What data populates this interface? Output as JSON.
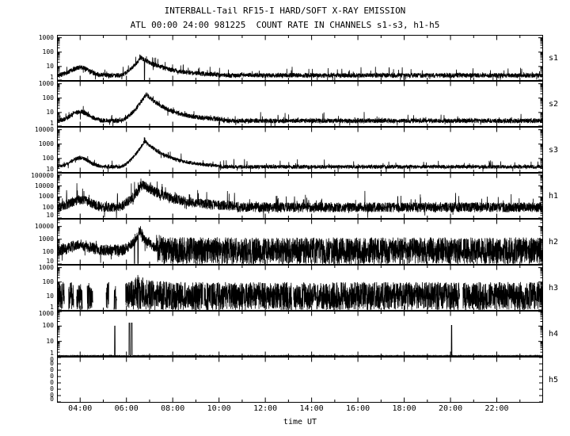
{
  "chart_data": {
    "type": "line",
    "title": "INTERBALL-Tail RF15-I HARD/SOFT X-RAY EMISSION",
    "subtitle": "ATL 00:00 24:00 981225  COUNT RATE IN CHANNELS s1-s3, h1-h5",
    "xlabel": "time UT",
    "date_yymmdd": "981225",
    "line_color": "#000000",
    "background": "#ffffff",
    "grid": false,
    "legend": "none",
    "x_range_hours": [
      3,
      24
    ],
    "sample_step_hours": 0.006,
    "x_major_tick_hours": [
      4,
      6,
      8,
      10,
      12,
      14,
      16,
      18,
      20,
      22
    ],
    "x_tick_labels": [
      "04:00",
      "06:00",
      "08:00",
      "10:00",
      "12:00",
      "14:00",
      "16:00",
      "18:00",
      "20:00",
      "22:00"
    ],
    "panels": [
      {
        "label": "s1",
        "scale": "log",
        "ylog_range": [
          0,
          3.2
        ],
        "yticks": [
          1000,
          100,
          10,
          1
        ],
        "baseline_log": 0.38,
        "noise_log": 0.16,
        "bump": {
          "center": 4.0,
          "sigma": 0.38,
          "amp_log": 0.55
        },
        "flare": {
          "start": 5.7,
          "peak": 6.62,
          "end": 10.0,
          "amp_log": 1.25
        },
        "spikes_up": {
          "prob": 0.03,
          "amp_log": 0.55
        },
        "spikes_down": {
          "prob": 0.008,
          "amp_log": 0.5
        },
        "events": [
          {
            "time": 6.78,
            "log_value": 0.05,
            "width": 0.008
          }
        ],
        "features": "quiet ~2-3 c/s; small bump ~04:00 (~8 c/s); flare peak ~40 c/s at 06:40 with narrow dropout; decay to quiet by ~09:00"
      },
      {
        "label": "s2",
        "scale": "log",
        "ylog_range": [
          0,
          3.2
        ],
        "yticks": [
          1000,
          100,
          10,
          1
        ],
        "baseline_log": 0.42,
        "noise_log": 0.16,
        "bump": {
          "center": 4.0,
          "sigma": 0.38,
          "amp_log": 0.62
        },
        "flare": {
          "start": 5.7,
          "peak": 6.85,
          "end": 10.2,
          "amp_log": 1.85
        },
        "spikes_up": {
          "prob": 0.03,
          "amp_log": 0.5
        },
        "spikes_down": {
          "prob": 0.008,
          "amp_log": 0.55
        },
        "events": [],
        "features": "quiet ~3 c/s; bump ~04:00 (~12 c/s); flare peak ~180 c/s at 06:50; decay by ~09:00"
      },
      {
        "label": "s3",
        "scale": "log",
        "ylog_range": [
          1,
          4.2
        ],
        "yticks": [
          10000,
          1000,
          100,
          10
        ],
        "baseline_log": 1.42,
        "noise_log": 0.13,
        "bump": {
          "center": 4.0,
          "sigma": 0.38,
          "amp_log": 0.62
        },
        "flare": {
          "start": 5.7,
          "peak": 6.8,
          "end": 10.0,
          "amp_log": 1.8
        },
        "spikes_up": {
          "prob": 0.02,
          "amp_log": 0.5
        },
        "spikes_down": {
          "prob": 0.006,
          "amp_log": 0.5
        },
        "events": [
          {
            "time": 16.0,
            "log_value": 1.05,
            "width": 0.008
          }
        ],
        "features": "quiet ~25 c/s; bump ~04:00 (~100 c/s); flare peak ~1600 c/s at 06:50; decay by ~10:00"
      },
      {
        "label": "h1",
        "scale": "log",
        "ylog_range": [
          1,
          5.2
        ],
        "yticks": [
          100000,
          10000,
          1000,
          100,
          10
        ],
        "baseline_log": 2.05,
        "noise_log": 0.45,
        "bump": {
          "center": 4.0,
          "sigma": 0.4,
          "amp_log": 0.7
        },
        "flare": {
          "start": 5.6,
          "peak": 6.7,
          "end": 10.8,
          "amp_log": 2.1
        },
        "spikes_up": {
          "prob": 0.04,
          "amp_log": 1.2
        },
        "spikes_down": {
          "prob": 0.012,
          "amp_log": 0.8
        },
        "events": [],
        "features": "very noisy band ~40-300 c/s; flare peak ~14000 c/s at 06:40; frequent spikes to ~3000 all day"
      },
      {
        "label": "h2",
        "scale": "log",
        "ylog_range": [
          1,
          4.6
        ],
        "yticks": [
          10000,
          1000,
          100,
          10
        ],
        "baseline_log": 2.15,
        "noise_log": 0.45,
        "bump": {
          "center": 4.0,
          "sigma": 0.4,
          "amp_log": 0.4
        },
        "flare": {
          "start": 5.8,
          "peak": 6.6,
          "end": 7.8,
          "amp_log": 1.5
        },
        "dense": {
          "lo_log": 1.05,
          "hi_log": 3.15,
          "from": 7.3
        },
        "spikes_up": {
          "prob": 0.02,
          "amp_log": 0.6
        },
        "spikes_down": {
          "prob": 0.03,
          "amp_log": 1.1
        },
        "events": [
          {
            "time": 6.35,
            "log_value": 1.1,
            "width": 0.01
          },
          {
            "time": 6.5,
            "log_value": 1.1,
            "width": 0.012
          }
        ],
        "features": "noisy ~100 c/s early; flare ~5000 c/s at 06:35 with dropouts; dense saturated band 10-1500 c/s from ~07:20 to 24:00"
      },
      {
        "label": "h3",
        "scale": "log",
        "ylog_range": [
          0,
          3.2
        ],
        "yticks": [
          1000,
          100,
          10,
          1
        ],
        "baseline_log": 1.0,
        "noise_log": 0.3,
        "dense": {
          "lo_log": 0.05,
          "hi_log": 2.0
        },
        "flare": {
          "start": 6.05,
          "peak": 6.55,
          "end": 7.8,
          "amp_log": 0.62
        },
        "gaps": [
          [
            3.32,
            3.5
          ],
          [
            3.72,
            3.84
          ],
          [
            4.1,
            4.3
          ],
          [
            4.55,
            5.12
          ],
          [
            5.24,
            5.46
          ],
          [
            5.58,
            5.96
          ],
          [
            9.3,
            9.36
          ],
          [
            13.15,
            13.21
          ],
          [
            20.4,
            20.53
          ]
        ],
        "events": [],
        "features": "dense saturated band 1-100 c/s with white data gaps before 06:00; flare top ~300 c/s at 06:30; continuous dense band to 24:00"
      },
      {
        "label": "h4",
        "scale": "log",
        "ylog_range": [
          0,
          3.0
        ],
        "yticks": [
          1000,
          100,
          10,
          1
        ],
        "baseline_log": 0.06,
        "noise_log": 0.02,
        "events": [
          {
            "time": 5.5,
            "log_value": 2.0,
            "width": 0.012
          },
          {
            "time": 6.13,
            "log_value": 2.2,
            "width": 0.02
          },
          {
            "time": 6.23,
            "log_value": 2.2,
            "width": 0.02
          },
          {
            "time": 20.05,
            "log_value": 2.05,
            "width": 0.012
          }
        ],
        "features": "flat baseline ~1 c/s; isolated spikes to ~100 c/s at ~05:30, double spike ~06:10, and ~20:00"
      },
      {
        "label": "h5",
        "scale": "linear",
        "yticks_linear": [
          "0",
          "0",
          "0",
          "0",
          "0",
          "0",
          "0",
          "0"
        ],
        "empty": true,
        "features": "no counts (empty channel)"
      }
    ]
  }
}
